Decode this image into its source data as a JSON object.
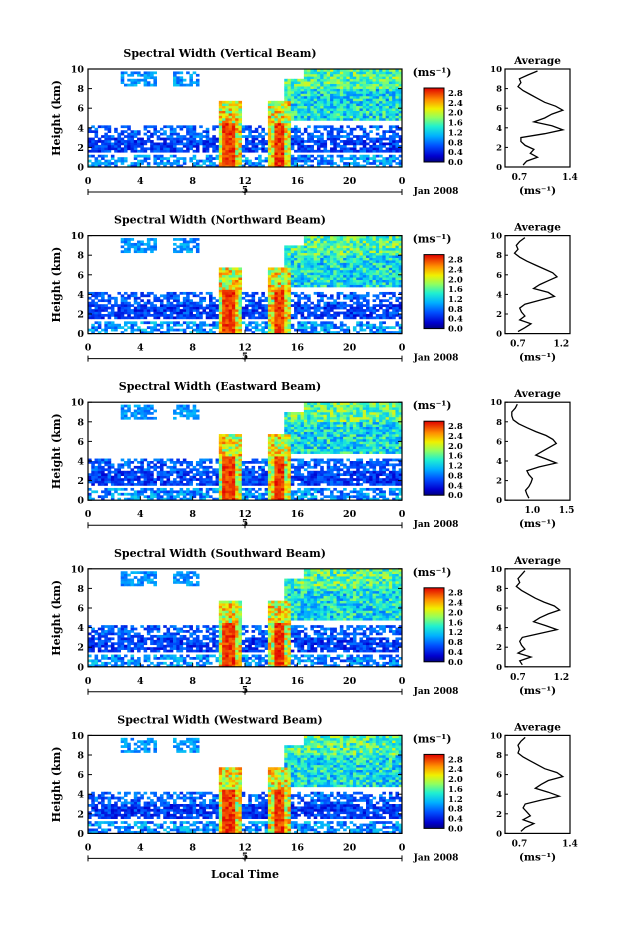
{
  "figure": {
    "common_ylabel": "Height (km)",
    "xlabel": "Local Time",
    "date_label": "Jan 2008",
    "day_marker": "5",
    "unit_label": "(ms⁻¹)",
    "avg_title": "Average",
    "avg_xlabel": "(ms⁻¹)"
  },
  "chart_data": [
    {
      "type": "heatmap",
      "title": "Spectral Width (Vertical Beam)",
      "ylabel": "Height (km)",
      "xlabel": "",
      "xlim": [
        0,
        24
      ],
      "ylim": [
        0,
        10
      ],
      "x_ticks": [
        "0",
        "4",
        "8",
        "12",
        "16",
        "20",
        "0"
      ],
      "y_ticks": [
        "0",
        "2",
        "4",
        "6",
        "8",
        "10"
      ],
      "colorbar_ticks": [
        "0.0",
        "0.4",
        "0.8",
        "1.2",
        "1.6",
        "2.0",
        "2.4",
        "2.8"
      ],
      "colorbar_range": [
        0,
        3.0
      ],
      "average_profile": {
        "title": "Average",
        "xlim": [
          0.5,
          1.4
        ],
        "x_ticks": [
          "0.7",
          "1.4"
        ],
        "y_ticks": [
          "0",
          "2",
          "4",
          "6",
          "8",
          "10"
        ],
        "height_km": [
          0.2,
          0.6,
          1.0,
          1.4,
          1.8,
          2.2,
          2.6,
          3.0,
          3.4,
          3.8,
          4.2,
          4.6,
          5.0,
          5.4,
          5.8,
          6.2,
          6.6,
          7.0,
          7.4,
          7.8,
          8.2,
          8.6,
          9.0,
          9.4,
          9.8
        ],
        "width_ms": [
          0.75,
          0.8,
          0.95,
          0.85,
          0.9,
          0.78,
          0.72,
          0.72,
          1.05,
          1.3,
          1.15,
          0.9,
          1.05,
          1.15,
          1.3,
          1.2,
          1.05,
          0.95,
          0.85,
          0.75,
          0.68,
          0.72,
          0.7,
          0.82,
          0.95
        ]
      }
    },
    {
      "type": "heatmap",
      "title": "Spectral Width (Northward Beam)",
      "ylabel": "Height (km)",
      "xlabel": "",
      "xlim": [
        0,
        24
      ],
      "ylim": [
        0,
        10
      ],
      "x_ticks": [
        "0",
        "4",
        "8",
        "12",
        "16",
        "20",
        "0"
      ],
      "y_ticks": [
        "0",
        "2",
        "4",
        "6",
        "8",
        "10"
      ],
      "colorbar_ticks": [
        "0.0",
        "0.4",
        "0.8",
        "1.2",
        "1.6",
        "2.0",
        "2.4",
        "2.8"
      ],
      "colorbar_range": [
        0,
        3.0
      ],
      "average_profile": {
        "title": "Average",
        "xlim": [
          0.55,
          1.3
        ],
        "x_ticks": [
          "0.7",
          "1.2"
        ],
        "y_ticks": [
          "0",
          "2",
          "4",
          "6",
          "8",
          "10"
        ],
        "height_km": [
          0.2,
          0.6,
          1.0,
          1.4,
          1.8,
          2.2,
          2.6,
          3.0,
          3.4,
          3.8,
          4.2,
          4.6,
          5.0,
          5.4,
          5.8,
          6.2,
          6.6,
          7.0,
          7.4,
          7.8,
          8.2,
          8.6,
          9.0,
          9.4,
          9.8
        ],
        "width_ms": [
          0.7,
          0.78,
          0.85,
          0.72,
          0.78,
          0.74,
          0.72,
          0.78,
          0.95,
          1.12,
          1.05,
          0.88,
          0.95,
          1.05,
          1.15,
          1.1,
          1.0,
          0.9,
          0.8,
          0.72,
          0.66,
          0.7,
          0.68,
          0.72,
          0.78
        ]
      }
    },
    {
      "type": "heatmap",
      "title": "Spectral Width (Eastward Beam)",
      "ylabel": "Height (km)",
      "xlabel": "",
      "xlim": [
        0,
        24
      ],
      "ylim": [
        0,
        10
      ],
      "x_ticks": [
        "0",
        "4",
        "8",
        "12",
        "16",
        "20",
        "0"
      ],
      "y_ticks": [
        "0",
        "2",
        "4",
        "6",
        "8",
        "10"
      ],
      "colorbar_ticks": [
        "0.0",
        "0.4",
        "0.8",
        "1.2",
        "1.6",
        "2.0",
        "2.4",
        "2.8"
      ],
      "colorbar_range": [
        0,
        3.0
      ],
      "average_profile": {
        "title": "Average",
        "xlim": [
          0.6,
          1.55
        ],
        "x_ticks": [
          "1.0",
          "1.5"
        ],
        "y_ticks": [
          "0",
          "2",
          "4",
          "6",
          "8",
          "10"
        ],
        "height_km": [
          0.2,
          0.6,
          1.0,
          1.4,
          1.8,
          2.2,
          2.6,
          3.0,
          3.4,
          3.8,
          4.2,
          4.6,
          5.0,
          5.4,
          5.8,
          6.2,
          6.6,
          7.0,
          7.4,
          7.8,
          8.2,
          8.6,
          9.0,
          9.4,
          9.8
        ],
        "width_ms": [
          0.95,
          0.92,
          0.9,
          0.95,
          0.98,
          1.0,
          0.95,
          0.92,
          1.1,
          1.35,
          1.2,
          1.05,
          1.15,
          1.25,
          1.35,
          1.3,
          1.2,
          1.05,
          0.92,
          0.8,
          0.72,
          0.7,
          0.7,
          0.75,
          0.78
        ]
      }
    },
    {
      "type": "heatmap",
      "title": "Spectral Width (Southward Beam)",
      "ylabel": "Height (km)",
      "xlabel": "",
      "xlim": [
        0,
        24
      ],
      "ylim": [
        0,
        10
      ],
      "x_ticks": [
        "0",
        "4",
        "8",
        "12",
        "16",
        "20",
        "0"
      ],
      "y_ticks": [
        "0",
        "2",
        "4",
        "6",
        "8",
        "10"
      ],
      "colorbar_ticks": [
        "0.0",
        "0.4",
        "0.8",
        "1.2",
        "1.6",
        "2.0",
        "2.4",
        "2.8"
      ],
      "colorbar_range": [
        0,
        3.0
      ],
      "average_profile": {
        "title": "Average",
        "xlim": [
          0.55,
          1.3
        ],
        "x_ticks": [
          "0.7",
          "1.2"
        ],
        "y_ticks": [
          "0",
          "2",
          "4",
          "6",
          "8",
          "10"
        ],
        "height_km": [
          0.2,
          0.6,
          1.0,
          1.4,
          1.8,
          2.2,
          2.6,
          3.0,
          3.4,
          3.8,
          4.2,
          4.6,
          5.0,
          5.4,
          5.8,
          6.2,
          6.6,
          7.0,
          7.4,
          7.8,
          8.2,
          8.6,
          9.0,
          9.4,
          9.8
        ],
        "width_ms": [
          0.75,
          0.72,
          0.85,
          0.7,
          0.78,
          0.74,
          0.72,
          0.75,
          0.95,
          1.15,
          1.02,
          0.88,
          0.95,
          1.05,
          1.18,
          1.12,
          1.0,
          0.9,
          0.82,
          0.74,
          0.68,
          0.72,
          0.7,
          0.74,
          0.78
        ]
      }
    },
    {
      "type": "heatmap",
      "title": "Spectral Width (Westward Beam)",
      "ylabel": "Height (km)",
      "xlabel": "Local Time",
      "xlim": [
        0,
        24
      ],
      "ylim": [
        0,
        10
      ],
      "x_ticks": [
        "0",
        "4",
        "8",
        "12",
        "16",
        "20",
        "0"
      ],
      "y_ticks": [
        "0",
        "2",
        "4",
        "6",
        "8",
        "10"
      ],
      "colorbar_ticks": [
        "0.0",
        "0.4",
        "0.8",
        "1.2",
        "1.6",
        "2.0",
        "2.4",
        "2.8"
      ],
      "colorbar_range": [
        0,
        3.0
      ],
      "average_profile": {
        "title": "Average",
        "xlim": [
          0.5,
          1.4
        ],
        "x_ticks": [
          "0.7",
          "1.4"
        ],
        "y_ticks": [
          "0",
          "2",
          "4",
          "6",
          "8",
          "10"
        ],
        "height_km": [
          0.2,
          0.6,
          1.0,
          1.4,
          1.8,
          2.2,
          2.6,
          3.0,
          3.4,
          3.8,
          4.2,
          4.6,
          5.0,
          5.4,
          5.8,
          6.2,
          6.6,
          7.0,
          7.4,
          7.8,
          8.2,
          8.6,
          9.0,
          9.4,
          9.8
        ],
        "width_ms": [
          0.72,
          0.78,
          0.9,
          0.75,
          0.85,
          0.8,
          0.75,
          0.78,
          1.0,
          1.25,
          1.1,
          0.92,
          1.0,
          1.1,
          1.3,
          1.22,
          1.05,
          0.95,
          0.85,
          0.75,
          0.68,
          0.7,
          0.68,
          0.72,
          0.78
        ]
      }
    }
  ]
}
